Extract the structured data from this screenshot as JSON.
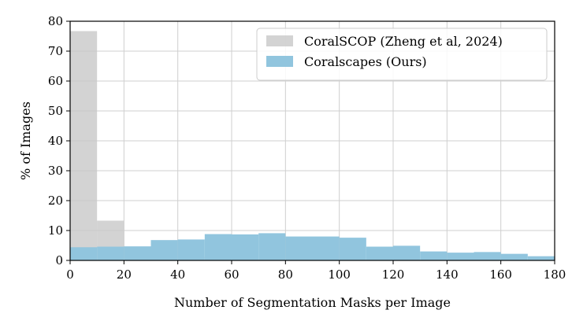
{
  "chart_data": {
    "type": "bar",
    "subtype": "overlaid-histogram",
    "title": "",
    "xlabel": "Number of Segmentation Masks per Image",
    "ylabel": "% of Images",
    "xlim": [
      0,
      180
    ],
    "ylim": [
      0,
      80
    ],
    "xticks": [
      0,
      20,
      40,
      60,
      80,
      100,
      120,
      140,
      160,
      180
    ],
    "yticks": [
      0,
      10,
      20,
      30,
      40,
      50,
      60,
      70,
      80
    ],
    "grid": true,
    "legend_position": "top-right",
    "bin_edges": [
      0,
      10,
      20,
      30,
      40,
      50,
      60,
      70,
      80,
      90,
      100,
      110,
      120,
      130,
      140,
      150,
      160,
      170,
      180
    ],
    "series": [
      {
        "name": "CoralSCOP (Zheng et al, 2024)",
        "color": "#c8c8c8",
        "opacity": 0.8,
        "values": [
          76.7,
          13.3,
          4.6,
          2.4,
          1.2,
          0.6,
          0.4,
          0.3,
          0.2,
          0.15,
          0.1,
          0.1,
          0.08,
          0.05,
          0.05,
          0.04,
          0.03,
          0.02
        ]
      },
      {
        "name": "Coralscapes (Ours)",
        "color": "#91c5de",
        "opacity": 1,
        "values": [
          4.4,
          4.6,
          4.7,
          6.8,
          7.0,
          8.8,
          8.7,
          9.1,
          8.0,
          8.0,
          7.6,
          4.6,
          4.9,
          3.0,
          2.6,
          2.8,
          2.2,
          1.4
        ]
      }
    ]
  }
}
